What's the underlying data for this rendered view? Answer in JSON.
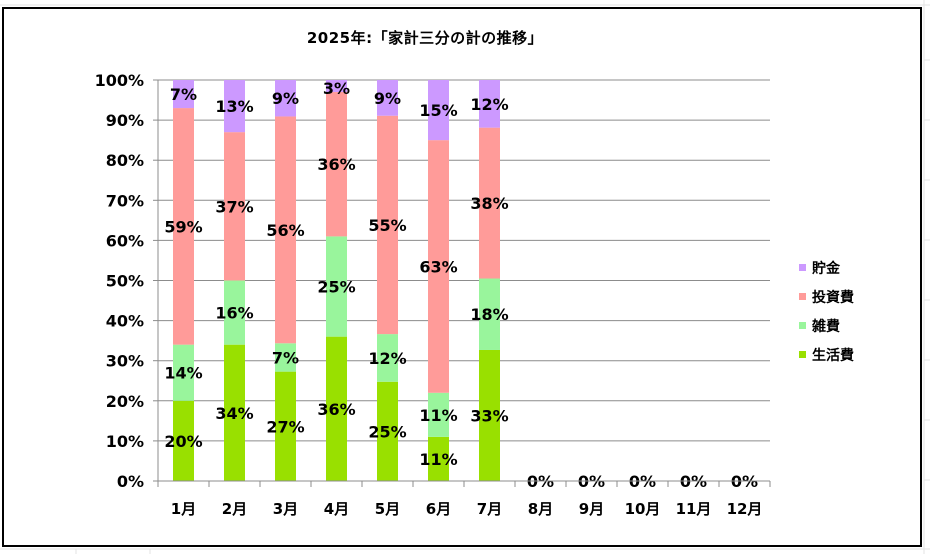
{
  "chart_data": {
    "type": "bar",
    "stacked": "percent",
    "title": "2025年:「家計三分の計の推移」",
    "categories": [
      "1月",
      "2月",
      "3月",
      "4月",
      "5月",
      "6月",
      "7月",
      "8月",
      "9月",
      "10月",
      "11月",
      "12月"
    ],
    "y_ticks": [
      "0%",
      "10%",
      "20%",
      "30%",
      "40%",
      "50%",
      "60%",
      "70%",
      "80%",
      "90%",
      "100%"
    ],
    "ylim": [
      0,
      100
    ],
    "grid": true,
    "legend_position": "right",
    "empty_label": "0%",
    "series": [
      {
        "name": "生活費",
        "color": "#99e000",
        "values": [
          20,
          34,
          27,
          36,
          25,
          11,
          33,
          0,
          0,
          0,
          0,
          0
        ],
        "labels": [
          "20%",
          "34%",
          "27%",
          "36%",
          "25%",
          "11%",
          "33%",
          "0%",
          "0%",
          "0%",
          "0%",
          "0%"
        ]
      },
      {
        "name": "雑費",
        "color": "#99f59c",
        "values": [
          14,
          16,
          7,
          25,
          12,
          11,
          18,
          0,
          0,
          0,
          0,
          0
        ],
        "labels": [
          "14%",
          "16%",
          "7%",
          "25%",
          "12%",
          "11%",
          "18%",
          "0%",
          "0%",
          "0%",
          "0%",
          "0%"
        ]
      },
      {
        "name": "投資費",
        "color": "#ff9b99",
        "values": [
          59,
          37,
          56,
          36,
          55,
          63,
          38,
          0,
          0,
          0,
          0,
          0
        ],
        "labels": [
          "59%",
          "37%",
          "56%",
          "36%",
          "55%",
          "63%",
          "38%",
          "0%",
          "0%",
          "0%",
          "0%",
          "0%"
        ]
      },
      {
        "name": "貯金",
        "color": "#cc99ff",
        "values": [
          7,
          13,
          9,
          3,
          9,
          15,
          12,
          0,
          0,
          0,
          0,
          0
        ],
        "labels": [
          "7%",
          "13%",
          "9%",
          "3%",
          "9%",
          "15%",
          "12%",
          "0%",
          "0%",
          "0%",
          "0%",
          "0%"
        ]
      }
    ]
  }
}
